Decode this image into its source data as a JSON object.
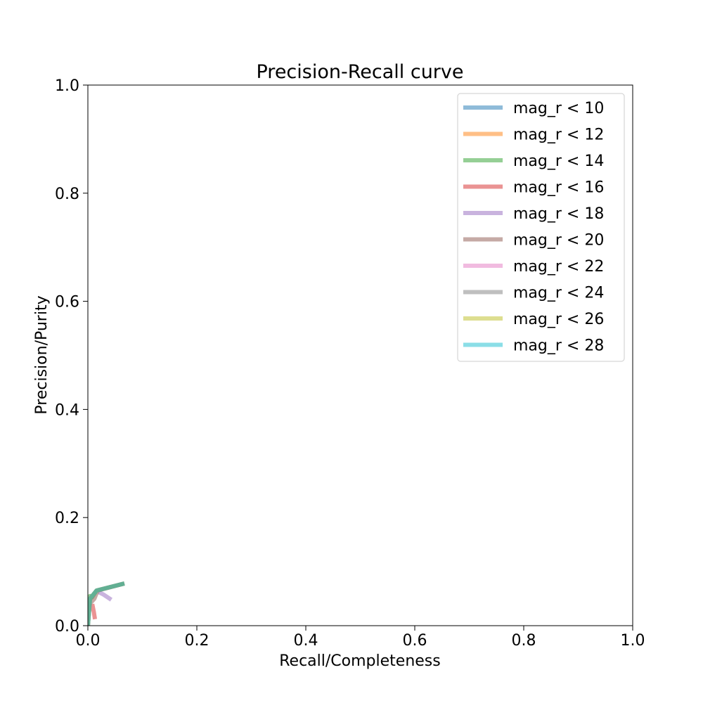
{
  "chart_data": {
    "type": "line",
    "title": "Precision-Recall curve",
    "xlabel": "Recall/Completeness",
    "ylabel": "Precision/Purity",
    "xlim": [
      0.0,
      1.0
    ],
    "ylim": [
      0.0,
      1.0
    ],
    "xticks": [
      "0.0",
      "0.2",
      "0.4",
      "0.6",
      "0.8",
      "1.0"
    ],
    "yticks": [
      "0.0",
      "0.2",
      "0.4",
      "0.6",
      "0.8",
      "1.0"
    ],
    "grid": false,
    "legend_position": "top-right",
    "series": [
      {
        "name": "mag_r < 10",
        "color": "#1f77b4",
        "x": [
          0.0
        ],
        "y": [
          0.0
        ]
      },
      {
        "name": "mag_r < 12",
        "color": "#ff7f0e",
        "x": [
          0.0
        ],
        "y": [
          0.0
        ]
      },
      {
        "name": "mag_r < 14",
        "color": "#2ca02c",
        "x": [
          0.0,
          0.001,
          0.003,
          0.004,
          0.007,
          0.016,
          0.067
        ],
        "y": [
          0.0,
          0.03,
          0.045,
          0.055,
          0.052,
          0.065,
          0.078
        ]
      },
      {
        "name": "mag_r < 16",
        "color": "#d62728",
        "x": [
          0.008,
          0.011,
          0.013
        ],
        "y": [
          0.04,
          0.025,
          0.012
        ]
      },
      {
        "name": "mag_r < 18",
        "color": "#9467bd",
        "x": [
          0.02,
          0.028,
          0.043
        ],
        "y": [
          0.062,
          0.058,
          0.048
        ]
      },
      {
        "name": "mag_r < 20",
        "color": "#8c564b",
        "x": [
          0.0,
          0.003,
          0.012,
          0.018,
          0.067
        ],
        "y": [
          0.0,
          0.04,
          0.05,
          0.065,
          0.078
        ]
      },
      {
        "name": "mag_r < 22",
        "color": "#e377c2",
        "x": [
          0.0,
          0.004,
          0.016,
          0.067
        ],
        "y": [
          0.0,
          0.05,
          0.065,
          0.078
        ]
      },
      {
        "name": "mag_r < 24",
        "color": "#7f7f7f",
        "x": [
          0.0,
          0.004,
          0.016,
          0.067
        ],
        "y": [
          0.0,
          0.05,
          0.065,
          0.078
        ]
      },
      {
        "name": "mag_r < 26",
        "color": "#bcbd22",
        "x": [
          0.0,
          0.004,
          0.016,
          0.067
        ],
        "y": [
          0.0,
          0.05,
          0.065,
          0.078
        ]
      },
      {
        "name": "mag_r < 28",
        "color": "#17becf",
        "x": [
          0.0,
          0.004,
          0.016,
          0.067
        ],
        "y": [
          0.0,
          0.05,
          0.065,
          0.078
        ]
      }
    ]
  }
}
